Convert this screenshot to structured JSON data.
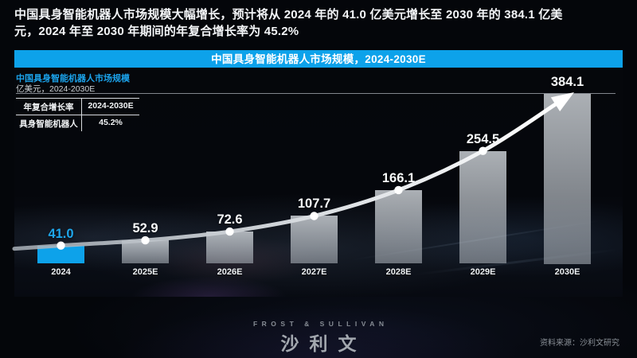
{
  "headline": {
    "line1": "中国具身智能机器人市场规模大幅增长，预计将从 2024 年的 41.0 亿美元增长至 2030 年的 384.1 亿美",
    "line2": "元，2024 年至 2030 年期间的年复合增长率为 45.2%"
  },
  "chart": {
    "banner_title": "中国具身智能机器人市场规模，2024-2030E",
    "subtitle": "中国具身智能机器人市场规模",
    "unit_label": "亿美元，2024-2030E",
    "cagr_table": {
      "col1_header": "年复合增长率",
      "col2_header": "2024-2030E",
      "col1_value": "具身智能机器人",
      "col2_value": "45.2%"
    }
  },
  "chart_data": {
    "type": "bar",
    "title": "中国具身智能机器人市场规模，2024-2030E",
    "ylabel": "亿美元",
    "categories": [
      "2024",
      "2025E",
      "2026E",
      "2027E",
      "2028E",
      "2029E",
      "2030E"
    ],
    "values": [
      41.0,
      52.9,
      72.6,
      107.7,
      166.1,
      254.5,
      384.1
    ],
    "ylim": [
      0,
      384.1
    ],
    "cagr_2024_2030": "45.2%",
    "highlight_index": 0,
    "highlight_color": "#0da2ea",
    "bar_color": "#b2b8bf",
    "trend_line": true,
    "trend_line_color": "#ffffff",
    "legend": "none",
    "grid": "off"
  },
  "footer": {
    "logo_en": "FROST & SULLIVAN",
    "logo_cn": "沙利文",
    "source": "资料来源：沙利文研究"
  }
}
